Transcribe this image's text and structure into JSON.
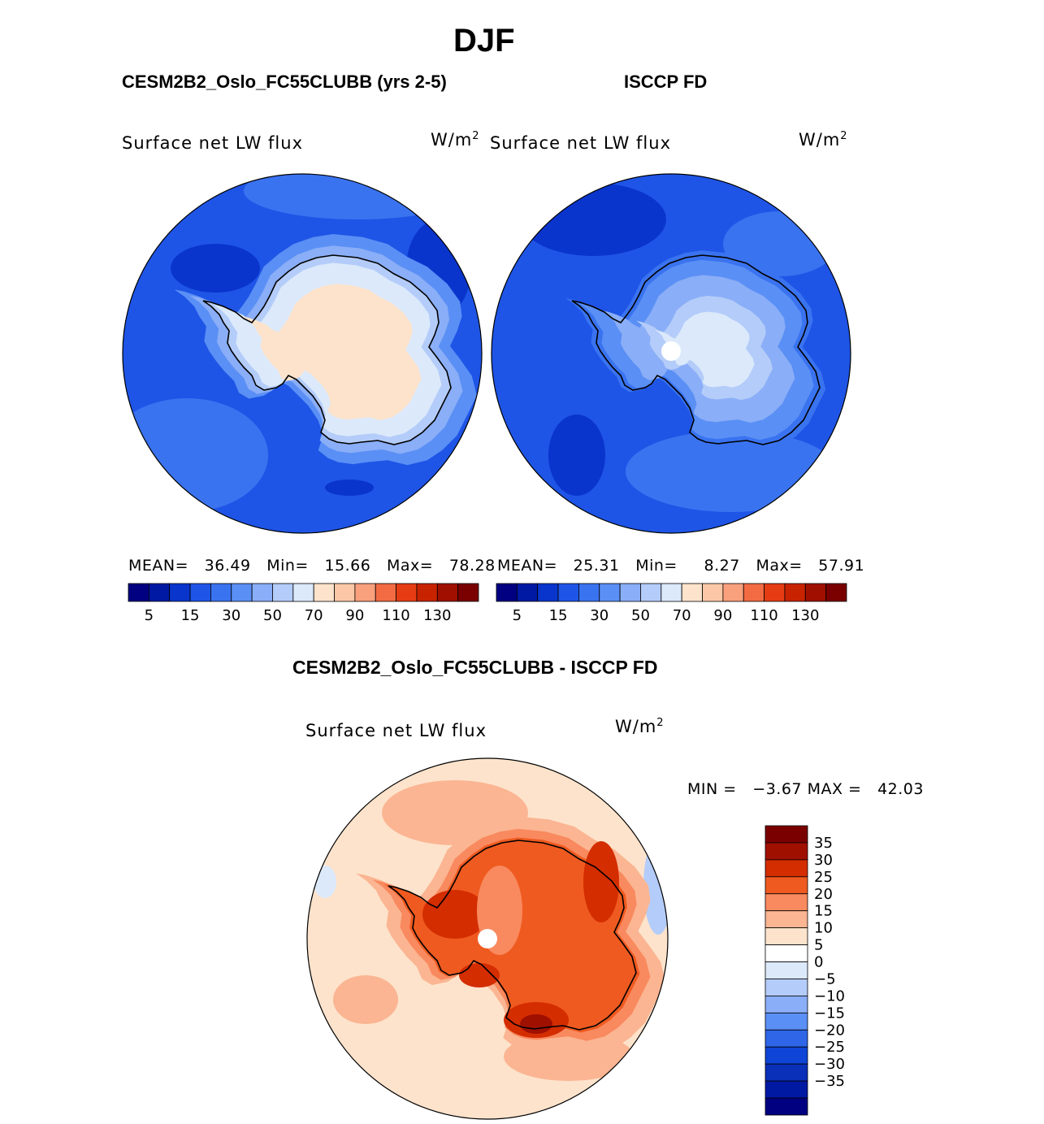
{
  "season": "DJF",
  "panels": [
    {
      "id": "model",
      "case_title": "CESM2B2_Oslo_FC55CLUBB (yrs 2-5)",
      "variable": "Surface net LW flux",
      "units_base": "W/m",
      "units_exp": "2",
      "stats": {
        "mean_label": "MEAN=",
        "mean": "36.49",
        "min_label": "Min=",
        "min": "15.66",
        "max_label": "Max=",
        "max": "78.28"
      }
    },
    {
      "id": "obs",
      "case_title": "ISCCP FD",
      "variable": "Surface net LW flux",
      "units_base": "W/m",
      "units_exp": "2",
      "stats": {
        "mean_label": "MEAN=",
        "mean": "25.31",
        "min_label": "Min=",
        "min": "8.27",
        "max_label": "Max=",
        "max": "57.91"
      }
    }
  ],
  "diff": {
    "title": "CESM2B2_Oslo_FC55CLUBB - ISCCP FD",
    "variable": "Surface net LW flux",
    "units_base": "W/m",
    "units_exp": "2",
    "min_label": "MIN =",
    "min": "−3.67",
    "max_label": "MAX =",
    "max": "42.03"
  },
  "colorbar_main": {
    "colors": [
      "#000080",
      "#0019a3",
      "#0a35cc",
      "#1f55e6",
      "#3a73f0",
      "#5a8ff5",
      "#8aaef7",
      "#b4ccf9",
      "#dbe9fb",
      "#fde3cc",
      "#fcc7a6",
      "#f9a07d",
      "#f36b43",
      "#e63c14",
      "#c82300",
      "#a01000",
      "#7a0000"
    ],
    "labels": [
      "5",
      "15",
      "30",
      "50",
      "70",
      "90",
      "110",
      "130"
    ]
  },
  "colorbar_diff": {
    "colors": [
      "#7a0000",
      "#a01000",
      "#d42d00",
      "#ef5a20",
      "#f9895e",
      "#fbb592",
      "#fde3cc",
      "#ffffff",
      "#dbe9fb",
      "#b4ccf9",
      "#8aaef7",
      "#5a8ff5",
      "#2f66e8",
      "#0f45d6",
      "#0a2fb8",
      "#0019a3",
      "#000080"
    ],
    "labels": [
      "35",
      "30",
      "25",
      "20",
      "15",
      "10",
      "5",
      "0",
      "−5",
      "−10",
      "−15",
      "−20",
      "−25",
      "−30",
      "−35"
    ]
  }
}
